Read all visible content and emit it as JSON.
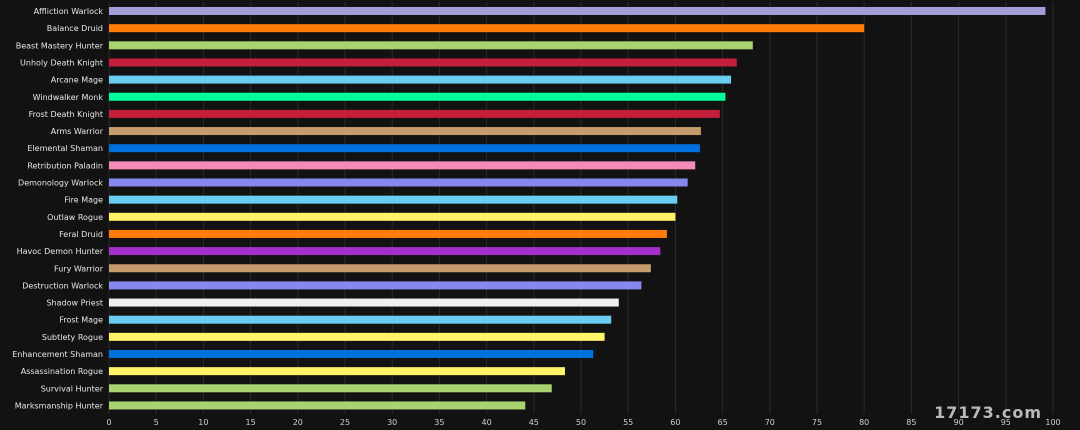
{
  "chart_data": {
    "type": "bar",
    "orientation": "horizontal",
    "categories": [
      "Affliction Warlock",
      "Balance Druid",
      "Beast Mastery Hunter",
      "Unholy Death Knight",
      "Arcane Mage",
      "Windwalker Monk",
      "Frost Death Knight",
      "Arms Warrior",
      "Elemental Shaman",
      "Retribution Paladin",
      "Demonology Warlock",
      "Fire Mage",
      "Outlaw Rogue",
      "Feral Druid",
      "Havoc Demon Hunter",
      "Fury Warrior",
      "Destruction Warlock",
      "Shadow Priest",
      "Frost Mage",
      "Subtlety Rogue",
      "Enhancement Shaman",
      "Assassination Rogue",
      "Survival Hunter",
      "Marksmanship Hunter"
    ],
    "values": [
      99.2,
      80.0,
      68.2,
      66.5,
      65.9,
      65.3,
      64.7,
      62.7,
      62.6,
      62.1,
      61.3,
      60.2,
      60.0,
      59.1,
      58.4,
      57.4,
      56.4,
      54.0,
      53.2,
      52.5,
      51.3,
      48.3,
      46.9,
      44.1
    ],
    "colors": [
      "#a29dd8",
      "#ff7c0a",
      "#a9d271",
      "#c41e3a",
      "#69ccf0",
      "#00ff98",
      "#c41e3a",
      "#c69b6d",
      "#0070dd",
      "#f48cba",
      "#8788ee",
      "#69ccf0",
      "#fff468",
      "#ff7c0a",
      "#a330c9",
      "#c69b6d",
      "#8788ee",
      "#f0f0f0",
      "#69ccf0",
      "#fff468",
      "#0070dd",
      "#fff468",
      "#a9d271",
      "#a9d271"
    ],
    "xlim": [
      0,
      100
    ],
    "xticks": [
      0,
      5,
      10,
      15,
      20,
      25,
      30,
      35,
      40,
      45,
      50,
      55,
      60,
      65,
      70,
      75,
      80,
      85,
      90,
      95,
      100
    ],
    "grid": true,
    "title": "",
    "xlabel": "",
    "ylabel": ""
  },
  "watermark": "17173.com"
}
